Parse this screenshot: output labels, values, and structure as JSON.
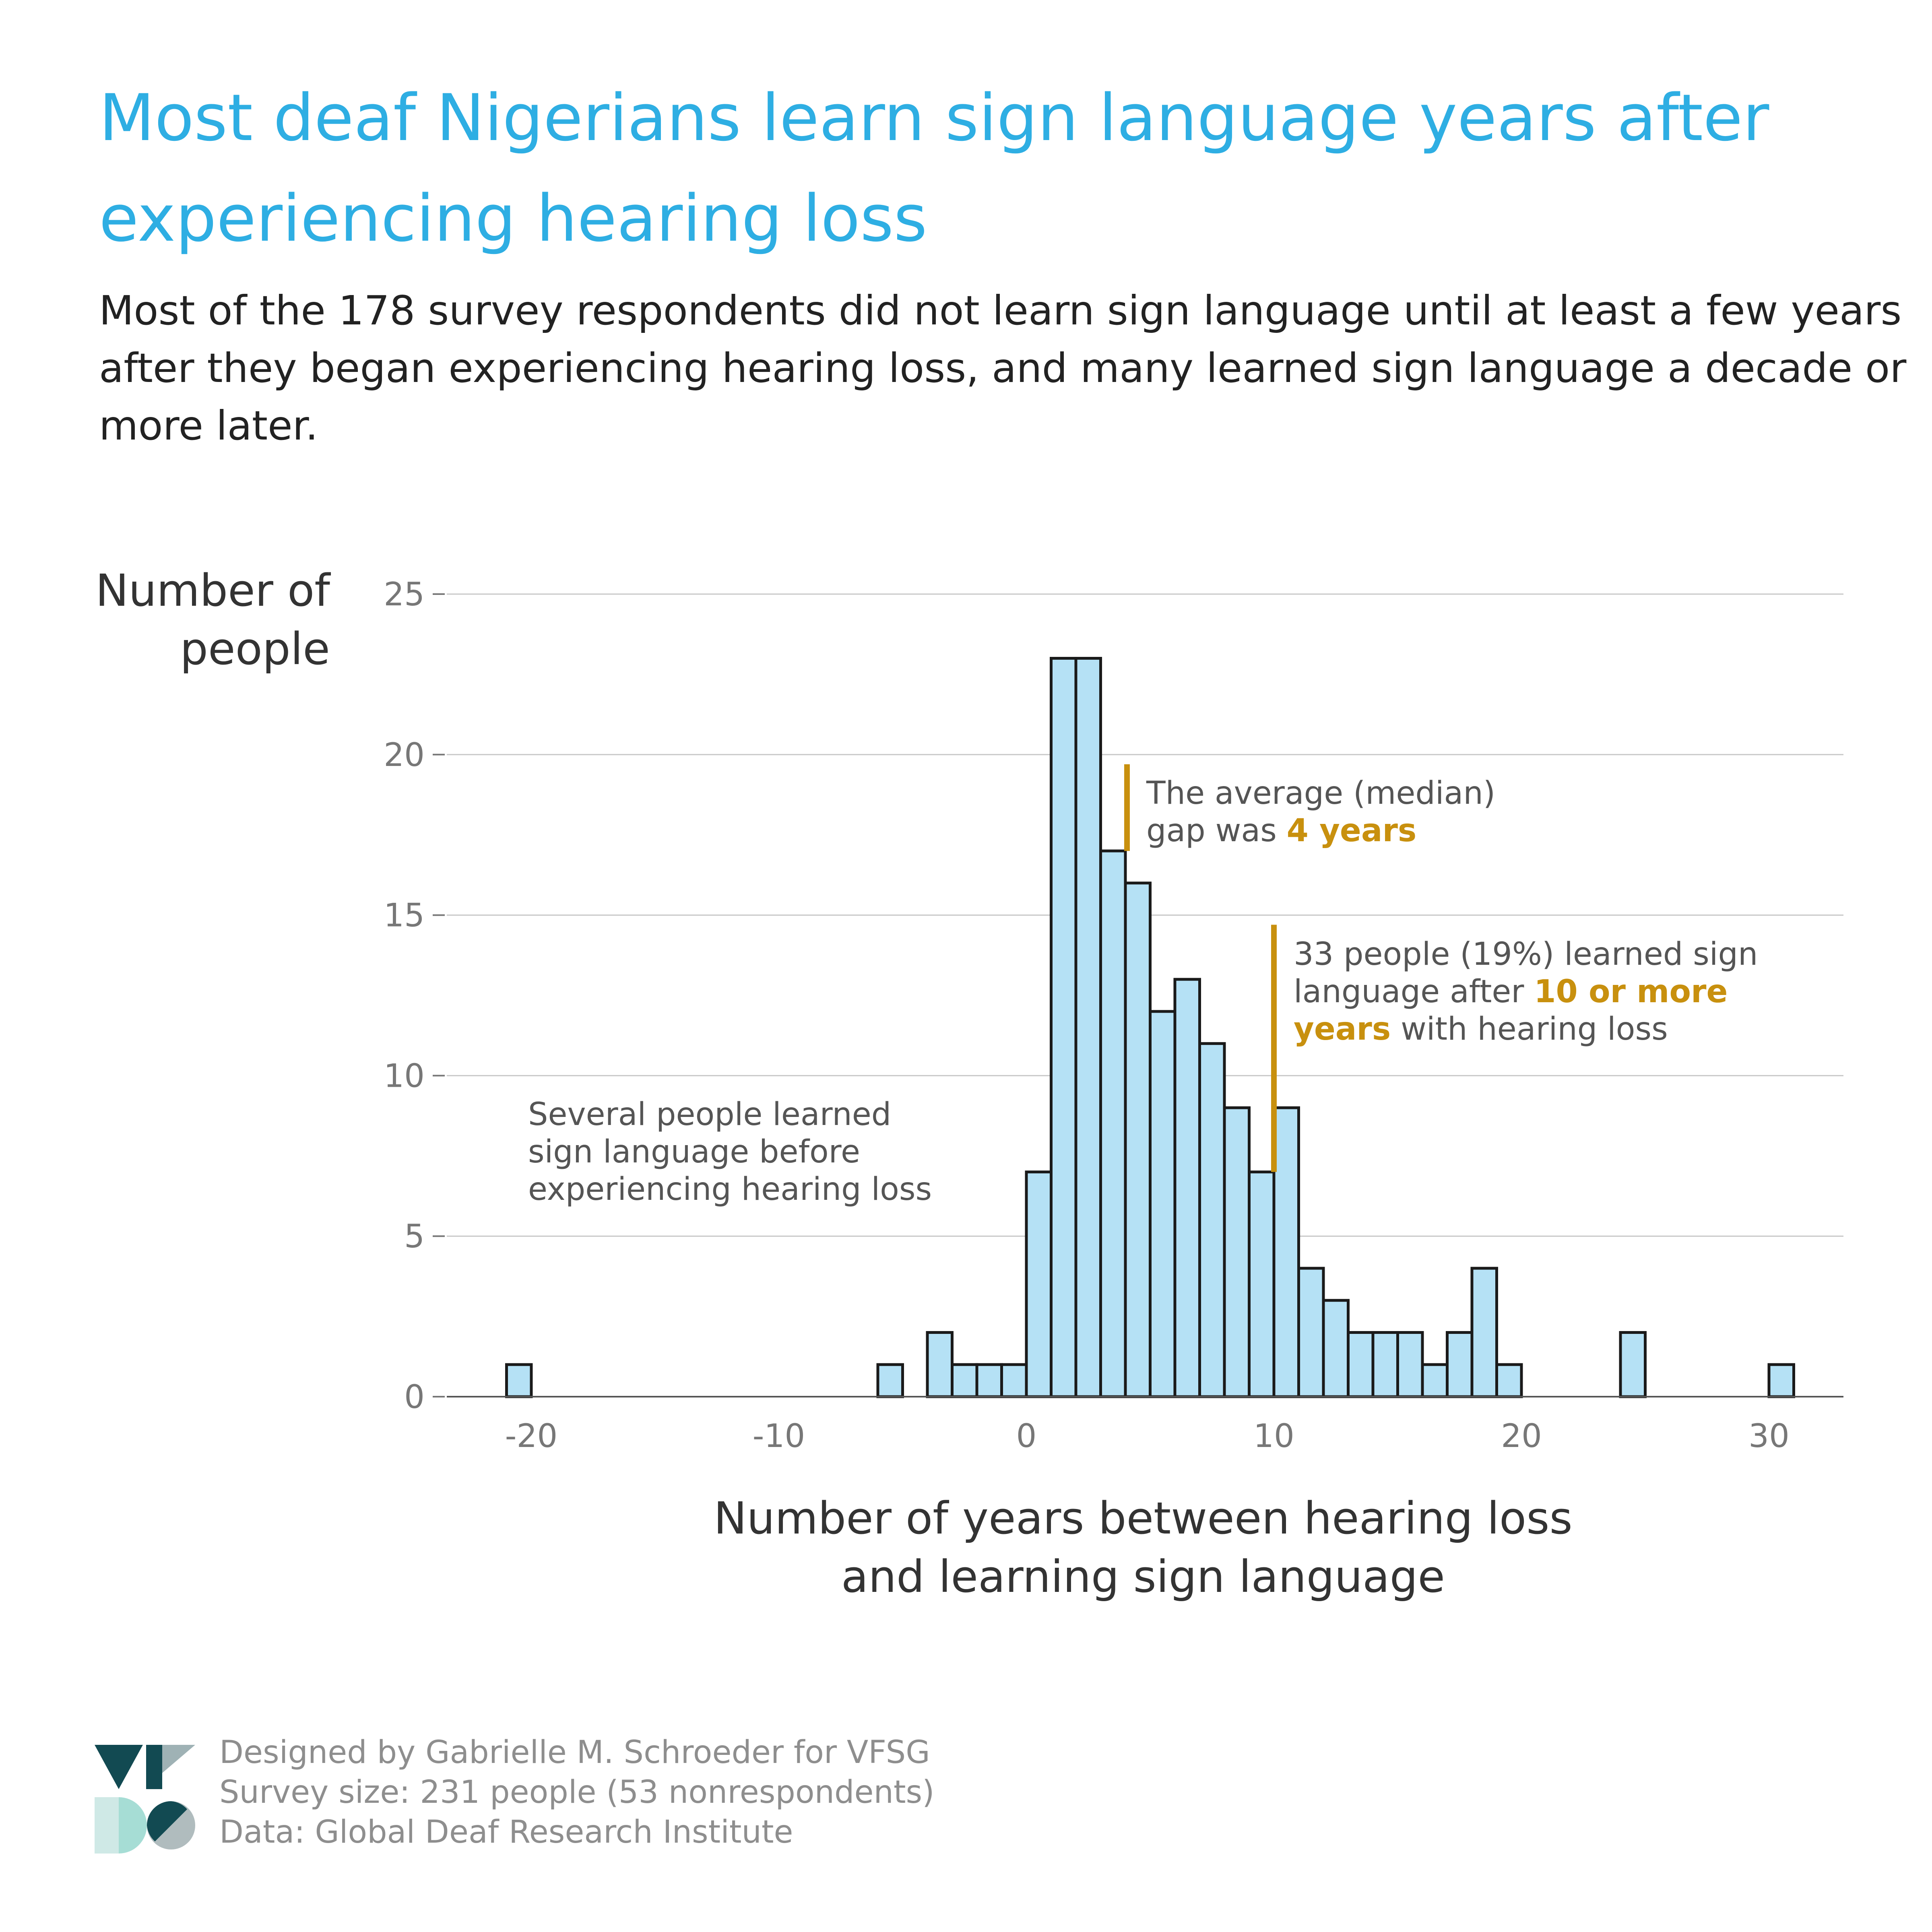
{
  "title": "Most deaf Nigerians learn sign language years after experiencing hearing loss",
  "subtitle": "Most of the 178 survey respondents did not learn sign language until at least a few years after they began experiencing hearing loss, and many learned sign language a decade or more later.",
  "y_axis_title": [
    "Number of",
    "people"
  ],
  "x_axis_title": [
    "Number of years between hearing loss",
    "and learning sign language"
  ],
  "annotations": {
    "median": {
      "line1": "The average (median)",
      "line2_prefix": "gap was ",
      "highlight": "4 years"
    },
    "ten_plus": {
      "line1": "33 people (19%) learned sign",
      "line2_prefix": "language after ",
      "highlight_a": "10 or more",
      "highlight_b": "years",
      "line3_suffix": " with hearing loss"
    },
    "before": {
      "line1": "Several people learned",
      "line2": "sign language before",
      "line3": "experiencing hearing loss"
    }
  },
  "footer": {
    "designer": "Designed by Gabrielle M. Schroeder for VFSG",
    "survey": "Survey size: 231 people (53 nonrespondents)",
    "data": "Data: Global Deaf Research Institute"
  },
  "colors": {
    "title": "#2eaee3",
    "bar_fill": "#b5e1f5",
    "bar_stroke": "#1a1a1a",
    "highlight": "#c8900e",
    "grid": "#c8c8c8"
  },
  "chart_data": {
    "type": "bar",
    "bin_width": 1,
    "bins_start": [
      -22,
      -21,
      -20,
      -19,
      -18,
      -17,
      -16,
      -15,
      -14,
      -13,
      -12,
      -11,
      -10,
      -9,
      -8,
      -7,
      -6,
      -5,
      -4,
      -3,
      -2,
      -1,
      0,
      1,
      2,
      3,
      4,
      5,
      6,
      7,
      8,
      9,
      10,
      11,
      12,
      13,
      14,
      15,
      16,
      17,
      18,
      19,
      20,
      21,
      22,
      23,
      24,
      25,
      26,
      27,
      28,
      29,
      30
    ],
    "values": [
      0,
      1,
      0,
      0,
      0,
      0,
      0,
      0,
      0,
      0,
      0,
      0,
      0,
      0,
      0,
      0,
      1,
      0,
      2,
      1,
      1,
      1,
      7,
      23,
      23,
      17,
      16,
      12,
      13,
      11,
      9,
      7,
      9,
      4,
      3,
      2,
      2,
      2,
      1,
      2,
      4,
      1,
      0,
      0,
      0,
      0,
      2,
      0,
      0,
      0,
      0,
      0,
      1
    ],
    "xlim": [
      -22,
      31
    ],
    "ylim": [
      0,
      25
    ],
    "xticks": [
      -20,
      -10,
      0,
      10,
      20,
      30
    ],
    "yticks": [
      0,
      5,
      10,
      15,
      20,
      25
    ],
    "xtick_labels": [
      "-20",
      "-10",
      "0",
      "10",
      "20",
      "30"
    ],
    "ytick_labels": [
      "0",
      "5",
      "10",
      "15",
      "20",
      "25"
    ],
    "median_line_x": 4,
    "ten_year_line_x": 10,
    "grid": true
  }
}
